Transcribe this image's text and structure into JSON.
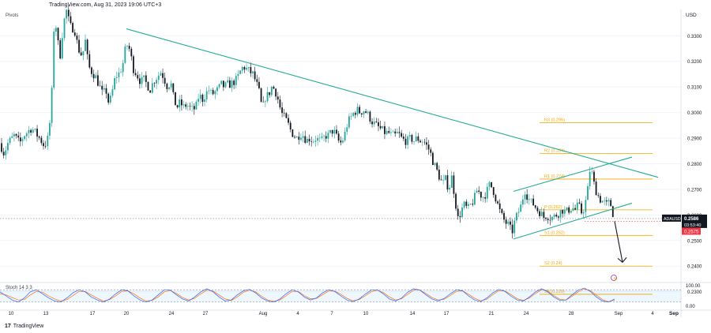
{
  "header": {
    "source": "TradingView.com, Aug 31, 2023 19:06 UTC+3"
  },
  "indicator_label": "Pivots",
  "currency": "USD",
  "stoch_label": "Stoch 14 3 3",
  "footer": {
    "logo": "TradingView"
  },
  "hover_date": "Sep",
  "colors": {
    "up": "#26a69a",
    "down": "#131722",
    "trend": "#22ab94",
    "pivot": "#f7a600",
    "stochK": "#2962ff",
    "stochD": "#ff6d00",
    "band": "#2196f3"
  },
  "chart_data": {
    "type": "candlestick",
    "symbol": "ADAUSD",
    "ylim": [
      0.2336,
      0.3378
    ],
    "yticks": [
      "0.3300",
      "0.3200",
      "0.3100",
      "0.3000",
      "0.2900",
      "0.2800",
      "0.2700",
      "0.2600",
      "0.2500",
      "0.2400",
      "0.2300"
    ],
    "yticks_values": [
      0.33,
      0.32,
      0.31,
      0.3,
      0.29,
      0.28,
      0.27,
      0.26,
      0.25,
      0.24,
      0.23
    ],
    "xticks": [
      "10",
      "13",
      "17",
      "20",
      "24",
      "27",
      "Aug",
      "4",
      "7",
      "10",
      "14",
      "17",
      "21",
      "24",
      "28",
      "Sep",
      "4"
    ],
    "current_price": {
      "symbol": "ADAUSD",
      "price": "0.2586",
      "countdown": "03:53:40",
      "value": 0.2586
    },
    "low_marker": {
      "price": "0.2575",
      "value": 0.2575
    },
    "pivots": [
      {
        "label": "R3 (0.296)",
        "value": 0.296
      },
      {
        "label": "R2 (0.284)",
        "value": 0.284
      },
      {
        "label": "R1 (0.274)",
        "value": 0.274
      },
      {
        "label": "P (0.262)",
        "value": 0.262
      },
      {
        "label": "S1 (0.252)",
        "value": 0.252
      },
      {
        "label": "S2 (0.24)",
        "value": 0.24
      },
      {
        "label": "S3 (0.229)",
        "value": 0.229
      }
    ],
    "trendlines": [
      {
        "from": [
          "Jul 20",
          0.3327
        ],
        "to": [
          "Sep 3",
          0.2747
        ]
      },
      {
        "from": [
          "Aug 23",
          0.2506
        ],
        "to": [
          "Sep 1",
          0.2646
        ]
      },
      {
        "from": [
          "Aug 23",
          0.2692
        ],
        "to": [
          "Sep 1",
          0.2826
        ]
      }
    ],
    "forecast_arrow": {
      "from": 0.2575,
      "to": 0.2415
    },
    "path": [
      [
        0,
        0.288
      ],
      [
        5,
        0.284
      ],
      [
        10,
        0.288
      ],
      [
        18,
        0.291
      ],
      [
        25,
        0.288
      ],
      [
        30,
        0.291
      ],
      [
        40,
        0.294
      ],
      [
        50,
        0.29
      ],
      [
        56,
        0.287
      ],
      [
        60,
        0.289
      ],
      [
        63,
        0.296
      ],
      [
        66,
        0.31
      ],
      [
        69,
        0.34
      ],
      [
        72,
        0.33
      ],
      [
        76,
        0.322
      ],
      [
        80,
        0.334
      ],
      [
        84,
        0.34
      ],
      [
        87,
        0.336
      ],
      [
        90,
        0.333
      ],
      [
        94,
        0.333
      ],
      [
        99,
        0.325
      ],
      [
        104,
        0.322
      ],
      [
        108,
        0.328
      ],
      [
        112,
        0.318
      ],
      [
        116,
        0.316
      ],
      [
        121,
        0.314
      ],
      [
        125,
        0.311
      ],
      [
        130,
        0.307
      ],
      [
        134,
        0.309
      ],
      [
        138,
        0.303
      ],
      [
        142,
        0.308
      ],
      [
        146,
        0.314
      ],
      [
        150,
        0.315
      ],
      [
        155,
        0.318
      ],
      [
        158,
        0.324
      ],
      [
        162,
        0.327
      ],
      [
        165,
        0.323
      ],
      [
        169,
        0.317
      ],
      [
        173,
        0.315
      ],
      [
        178,
        0.312
      ],
      [
        182,
        0.313
      ],
      [
        186,
        0.311
      ],
      [
        190,
        0.309
      ],
      [
        194,
        0.312
      ],
      [
        199,
        0.314
      ],
      [
        204,
        0.316
      ],
      [
        208,
        0.313
      ],
      [
        212,
        0.31
      ],
      [
        216,
        0.312
      ],
      [
        220,
        0.305
      ],
      [
        224,
        0.302
      ],
      [
        228,
        0.304
      ],
      [
        232,
        0.302
      ],
      [
        236,
        0.303
      ],
      [
        240,
        0.302
      ],
      [
        244,
        0.301
      ],
      [
        248,
        0.302
      ],
      [
        252,
        0.307
      ],
      [
        256,
        0.305
      ],
      [
        260,
        0.307
      ],
      [
        264,
        0.309
      ],
      [
        268,
        0.307
      ],
      [
        272,
        0.308
      ],
      [
        276,
        0.309
      ],
      [
        280,
        0.311
      ],
      [
        284,
        0.31
      ],
      [
        288,
        0.311
      ],
      [
        292,
        0.311
      ],
      [
        296,
        0.312
      ],
      [
        300,
        0.313
      ],
      [
        304,
        0.316
      ],
      [
        308,
        0.318
      ],
      [
        312,
        0.317
      ],
      [
        316,
        0.316
      ],
      [
        320,
        0.315
      ],
      [
        324,
        0.312
      ],
      [
        328,
        0.308
      ],
      [
        332,
        0.301
      ],
      [
        336,
        0.306
      ],
      [
        340,
        0.307
      ],
      [
        344,
        0.31
      ],
      [
        348,
        0.309
      ],
      [
        352,
        0.305
      ],
      [
        356,
        0.3
      ],
      [
        360,
        0.298
      ],
      [
        364,
        0.296
      ],
      [
        368,
        0.293
      ],
      [
        372,
        0.291
      ],
      [
        376,
        0.29
      ],
      [
        380,
        0.292
      ],
      [
        384,
        0.291
      ],
      [
        388,
        0.289
      ],
      [
        392,
        0.29
      ],
      [
        396,
        0.289
      ],
      [
        400,
        0.29
      ],
      [
        404,
        0.289
      ],
      [
        408,
        0.289
      ],
      [
        412,
        0.291
      ],
      [
        416,
        0.291
      ],
      [
        420,
        0.293
      ],
      [
        424,
        0.292
      ],
      [
        428,
        0.289
      ],
      [
        432,
        0.288
      ],
      [
        436,
        0.291
      ],
      [
        440,
        0.296
      ],
      [
        444,
        0.298
      ],
      [
        448,
        0.3
      ],
      [
        452,
        0.301
      ],
      [
        456,
        0.3
      ],
      [
        460,
        0.301
      ],
      [
        464,
        0.3
      ],
      [
        468,
        0.298
      ],
      [
        472,
        0.296
      ],
      [
        476,
        0.295
      ],
      [
        480,
        0.294
      ],
      [
        484,
        0.293
      ],
      [
        488,
        0.292
      ],
      [
        492,
        0.292
      ],
      [
        496,
        0.291
      ],
      [
        500,
        0.291
      ],
      [
        504,
        0.292
      ],
      [
        508,
        0.29
      ],
      [
        512,
        0.289
      ],
      [
        516,
        0.289
      ],
      [
        520,
        0.29
      ],
      [
        524,
        0.289
      ],
      [
        528,
        0.29
      ],
      [
        532,
        0.289
      ],
      [
        536,
        0.289
      ],
      [
        540,
        0.287
      ],
      [
        544,
        0.285
      ],
      [
        548,
        0.281
      ],
      [
        552,
        0.278
      ],
      [
        556,
        0.275
      ],
      [
        560,
        0.272
      ],
      [
        564,
        0.274
      ],
      [
        568,
        0.27
      ],
      [
        572,
        0.275
      ],
      [
        576,
        0.266
      ],
      [
        580,
        0.258
      ],
      [
        584,
        0.262
      ],
      [
        588,
        0.264
      ],
      [
        592,
        0.262
      ],
      [
        596,
        0.264
      ],
      [
        600,
        0.266
      ],
      [
        604,
        0.27
      ],
      [
        608,
        0.268
      ],
      [
        612,
        0.267
      ],
      [
        616,
        0.269
      ],
      [
        620,
        0.272
      ],
      [
        624,
        0.27
      ],
      [
        628,
        0.266
      ],
      [
        632,
        0.262
      ],
      [
        636,
        0.259
      ],
      [
        640,
        0.257
      ],
      [
        644,
        0.256
      ],
      [
        648,
        0.253
      ],
      [
        652,
        0.258
      ],
      [
        656,
        0.261
      ],
      [
        660,
        0.264
      ],
      [
        664,
        0.27
      ],
      [
        668,
        0.267
      ],
      [
        672,
        0.265
      ],
      [
        676,
        0.264
      ],
      [
        680,
        0.262
      ],
      [
        684,
        0.261
      ],
      [
        688,
        0.259
      ],
      [
        692,
        0.26
      ],
      [
        696,
        0.259
      ],
      [
        700,
        0.259
      ],
      [
        704,
        0.26
      ],
      [
        708,
        0.261
      ],
      [
        712,
        0.262
      ],
      [
        716,
        0.261
      ],
      [
        720,
        0.262
      ],
      [
        724,
        0.263
      ],
      [
        728,
        0.262
      ],
      [
        732,
        0.264
      ],
      [
        736,
        0.261
      ],
      [
        740,
        0.263
      ],
      [
        744,
        0.27
      ],
      [
        746,
        0.277
      ],
      [
        748,
        0.278
      ],
      [
        752,
        0.272
      ],
      [
        756,
        0.268
      ],
      [
        760,
        0.266
      ],
      [
        764,
        0.265
      ],
      [
        768,
        0.264
      ],
      [
        772,
        0.265
      ],
      [
        775,
        0.262
      ],
      [
        777,
        0.2586
      ]
    ],
    "stoch": {
      "levels": [
        80,
        20
      ],
      "ticks": [
        "100.00",
        "0.00"
      ],
      "k": [
        70,
        50,
        30,
        20,
        40,
        70,
        80,
        60,
        40,
        25,
        20,
        40,
        65,
        80,
        70,
        45,
        30,
        20,
        35,
        60,
        80,
        75,
        50,
        30,
        20,
        30,
        55,
        80,
        78,
        55,
        35,
        25,
        45,
        70,
        85,
        70,
        45,
        25,
        30,
        55,
        75,
        82,
        65,
        40,
        25,
        20,
        35,
        60,
        80,
        70,
        45,
        30,
        40,
        65,
        80,
        72,
        50,
        30,
        22,
        35,
        58,
        78,
        80,
        60,
        35,
        25,
        40,
        68,
        85,
        78,
        55,
        35,
        25,
        38,
        60,
        80,
        75,
        50,
        30,
        22,
        40,
        65,
        82,
        72,
        48,
        30,
        25,
        45,
        70,
        85,
        70,
        45,
        28,
        30,
        55,
        78,
        88,
        72,
        45,
        25,
        20,
        35
      ],
      "d": [
        60,
        55,
        42,
        30,
        32,
        55,
        72,
        68,
        50,
        35,
        25,
        32,
        52,
        72,
        72,
        55,
        38,
        25,
        32,
        50,
        72,
        75,
        60,
        40,
        25,
        28,
        45,
        70,
        76,
        62,
        42,
        30,
        38,
        60,
        78,
        74,
        55,
        35,
        28,
        45,
        68,
        78,
        70,
        48,
        30,
        24,
        30,
        50,
        72,
        72,
        52,
        36,
        38,
        56,
        74,
        74,
        58,
        38,
        26,
        32,
        50,
        70,
        78,
        66,
        45,
        30,
        36,
        58,
        78,
        78,
        62,
        42,
        30,
        34,
        52,
        72,
        75,
        58,
        38,
        26,
        34,
        56,
        76,
        74,
        56,
        36,
        28,
        40,
        62,
        80,
        74,
        52,
        34,
        30,
        48,
        70,
        84,
        76,
        54,
        32,
        22,
        30
      ]
    }
  }
}
